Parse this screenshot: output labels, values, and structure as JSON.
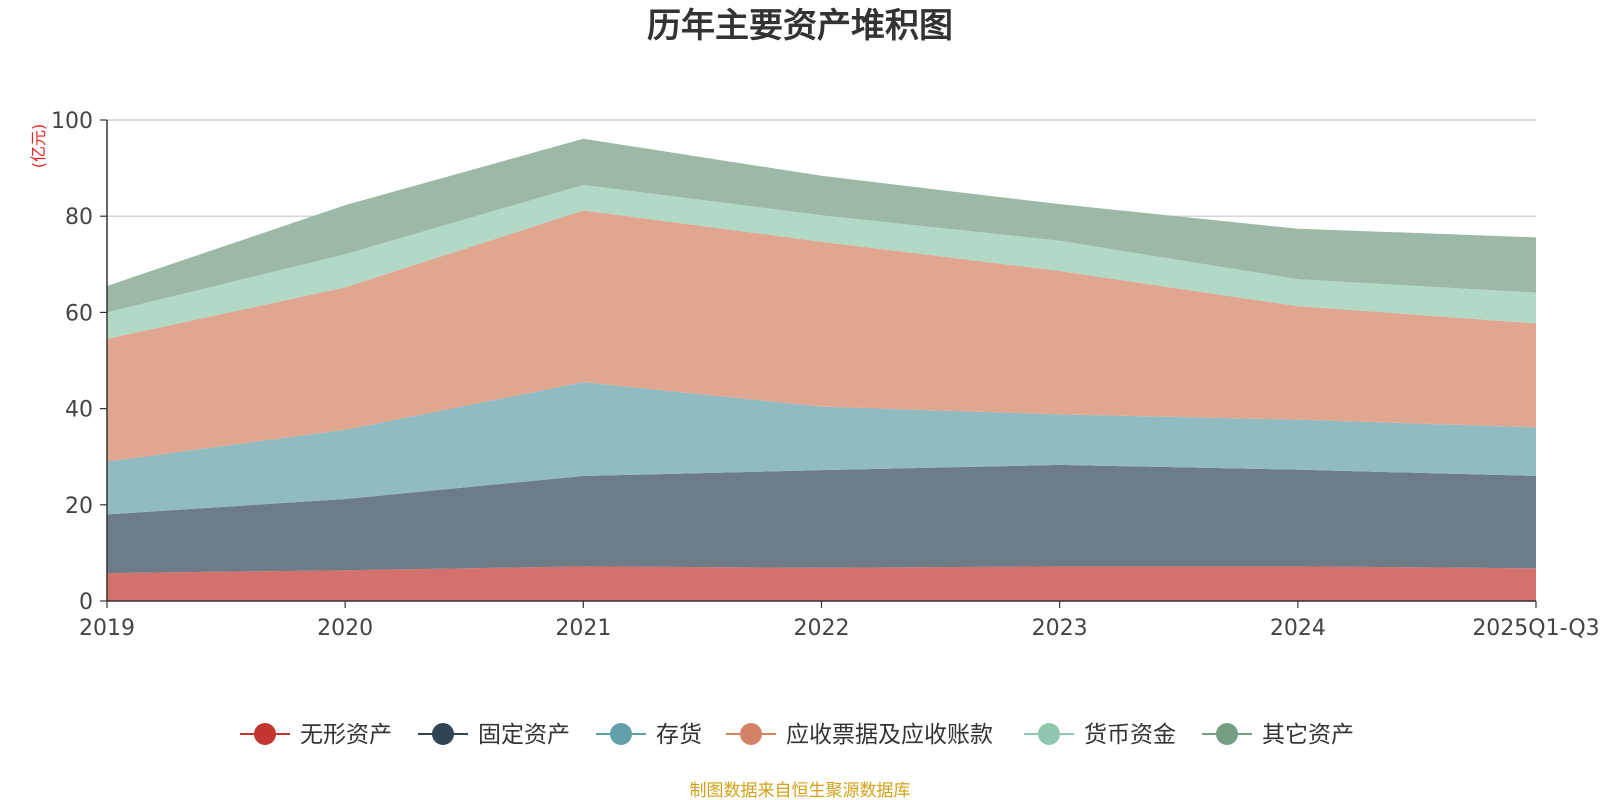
{
  "chart_data": {
    "type": "area",
    "stacked": true,
    "title": "历年主要资产堆积图",
    "ylabel": "(亿元)",
    "xlabel": "",
    "categories": [
      "2019",
      "2020",
      "2021",
      "2022",
      "2023",
      "2024",
      "2025Q1-Q3"
    ],
    "ylim": [
      0,
      100
    ],
    "yticks": [
      0,
      20,
      40,
      60,
      80,
      100
    ],
    "grid": true,
    "legend_position": "bottom",
    "series": [
      {
        "name": "无形资产",
        "values": [
          5.8,
          6.4,
          7.2,
          6.9,
          7.2,
          7.2,
          6.8
        ],
        "color": "#c23531",
        "fill": "#d4716d"
      },
      {
        "name": "固定资产",
        "values": [
          12.2,
          14.8,
          18.8,
          20.3,
          21.1,
          20.1,
          19.2
        ],
        "color": "#2f4554",
        "fill": "#6d7c87"
      },
      {
        "name": "存货",
        "values": [
          11.0,
          14.4,
          19.5,
          13.2,
          10.5,
          10.4,
          10.1
        ],
        "color": "#61a0a8",
        "fill": "#90bbc0"
      },
      {
        "name": "应收票据及应收账款",
        "values": [
          25.5,
          29.6,
          35.7,
          34.3,
          29.8,
          23.6,
          21.6
        ],
        "color": "#d48265",
        "fill": "#e0a690"
      },
      {
        "name": "货币资金",
        "values": [
          5.5,
          6.9,
          5.3,
          5.5,
          6.3,
          5.6,
          6.4
        ],
        "color": "#91c7ae",
        "fill": "#b2d8c6"
      },
      {
        "name": "其它资产",
        "values": [
          5.5,
          10.2,
          9.6,
          8.2,
          7.6,
          10.5,
          11.5
        ],
        "color": "#749f83",
        "fill": "#9cb9a7"
      }
    ],
    "source_note": "制图数据来自恒生聚源数据库",
    "source_color": "#d4a017",
    "unit_color": "#e8231a"
  }
}
